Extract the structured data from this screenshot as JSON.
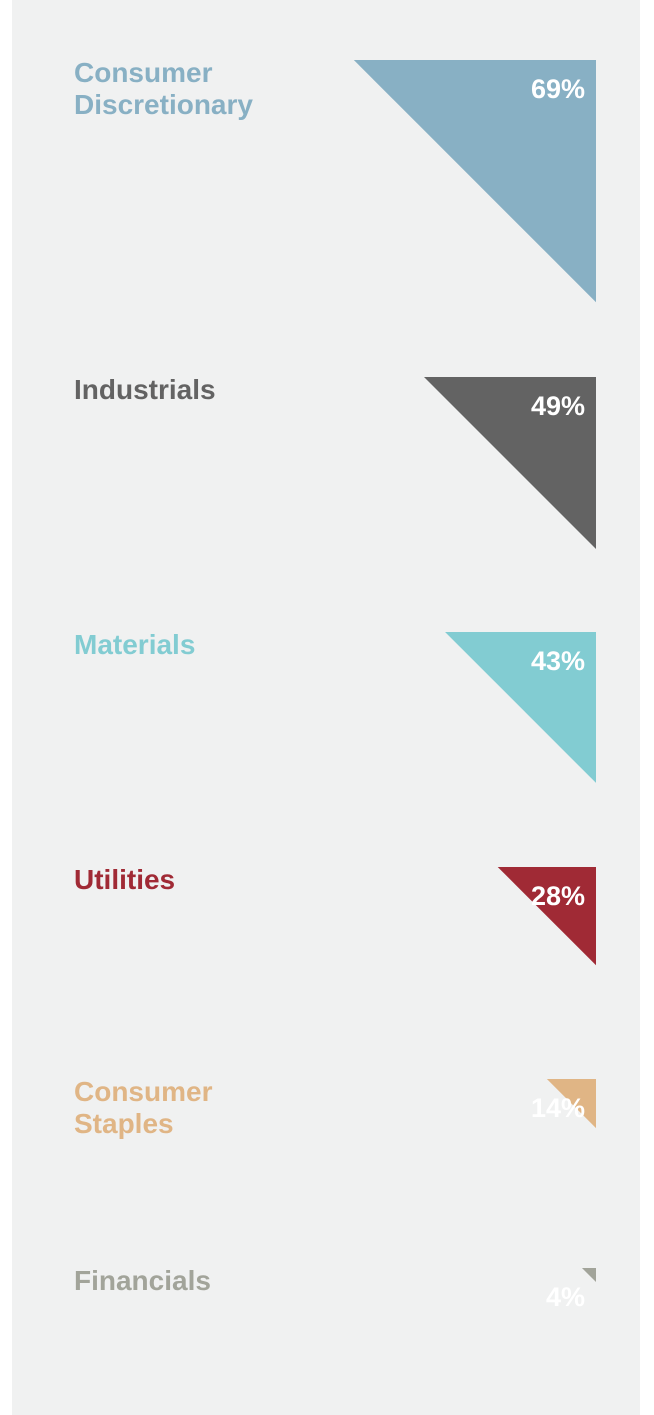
{
  "chart_data": {
    "type": "bar",
    "categories": [
      "Consumer Discretionary",
      "Industrials",
      "Materials",
      "Utilities",
      "Consumer Staples",
      "Financials"
    ],
    "label_lines": [
      [
        "Consumer",
        "Discretionary"
      ],
      [
        "Industrials"
      ],
      [
        "Materials"
      ],
      [
        "Utilities"
      ],
      [
        "Consumer",
        "Staples"
      ],
      [
        "Financials"
      ]
    ],
    "values": [
      69,
      49,
      43,
      28,
      14,
      4
    ],
    "value_labels": [
      "69%",
      "49%",
      "43%",
      "28%",
      "14%",
      "4%"
    ],
    "colors": [
      "#88b0c4",
      "#636363",
      "#82ccd2",
      "#a02a35",
      "#e0b585",
      "#a2a49a"
    ],
    "unit": "%",
    "marker": "right-triangle",
    "grid": false,
    "legend": "none"
  }
}
